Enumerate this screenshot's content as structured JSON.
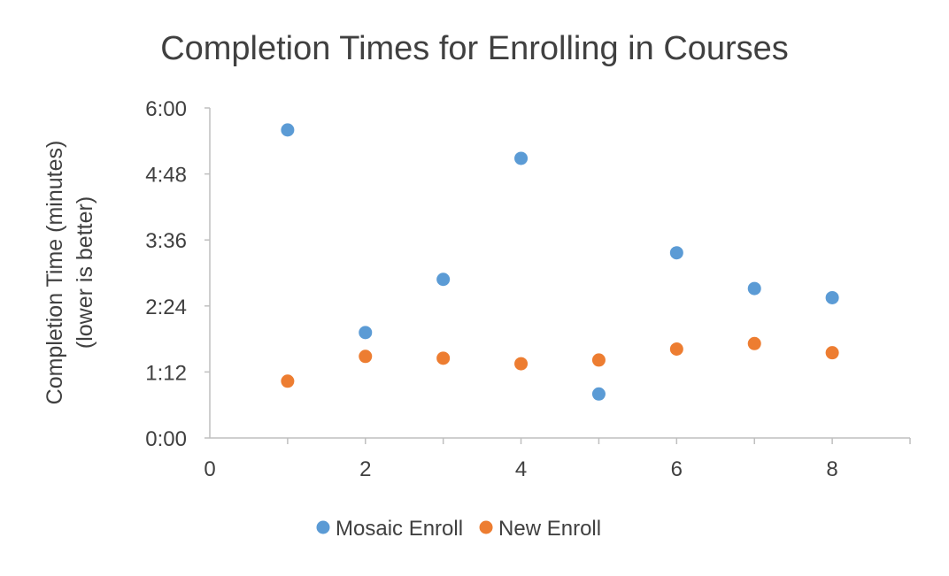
{
  "chart_data": {
    "type": "scatter",
    "title": "Completion Times for Enrolling in Courses",
    "ylabel_lines": [
      "Completion Time (minutes)",
      "(lower is better)"
    ],
    "xlim": [
      0,
      9
    ],
    "ylim": [
      "0:00",
      "6:00"
    ],
    "x_ticks": [
      0,
      2,
      4,
      6,
      8
    ],
    "y_ticks": [
      "0:00",
      "1:12",
      "2:24",
      "3:36",
      "4:48",
      "6:00"
    ],
    "grid": false,
    "legend_position": "bottom",
    "series": [
      {
        "name": "Mosaic Enroll",
        "color": "#5B9BD5",
        "points": [
          {
            "x": 1,
            "y": "5:36"
          },
          {
            "x": 2,
            "y": "1:55"
          },
          {
            "x": 3,
            "y": "2:53"
          },
          {
            "x": 4,
            "y": "5:05"
          },
          {
            "x": 5,
            "y": "0:48"
          },
          {
            "x": 6,
            "y": "3:22"
          },
          {
            "x": 7,
            "y": "2:43"
          },
          {
            "x": 8,
            "y": "2:33"
          }
        ]
      },
      {
        "name": "New Enroll",
        "color": "#ED7D31",
        "points": [
          {
            "x": 1,
            "y": "1:02"
          },
          {
            "x": 2,
            "y": "1:29"
          },
          {
            "x": 3,
            "y": "1:27"
          },
          {
            "x": 4,
            "y": "1:21"
          },
          {
            "x": 5,
            "y": "1:25"
          },
          {
            "x": 6,
            "y": "1:37"
          },
          {
            "x": 7,
            "y": "1:43"
          },
          {
            "x": 8,
            "y": "1:33"
          }
        ]
      }
    ]
  }
}
